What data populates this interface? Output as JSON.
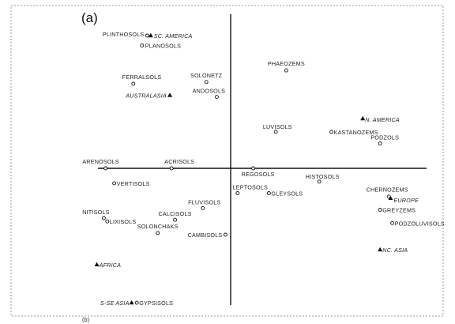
{
  "panel_label": "(a)",
  "bottom_label": "(b)",
  "chart_data": {
    "type": "scatter",
    "title": "",
    "xlabel": "",
    "ylabel": "",
    "xlim": [
      -4.0,
      7.0
    ],
    "ylim": [
      -4.5,
      4.5
    ],
    "grid": false,
    "axes_style": "crossed-at-origin, no ticks",
    "legend": "none",
    "marker_legend": {
      "circle": "soil group",
      "triangle": "region"
    },
    "points": [
      {
        "label": "PLINTHOSOLS",
        "x": -2.4,
        "y": 4.0,
        "marker": "circle"
      },
      {
        "label": "SC. AMERICA",
        "x": -2.3,
        "y": 4.0,
        "marker": "triangle"
      },
      {
        "label": "PLANOSOLS",
        "x": -2.55,
        "y": 3.7,
        "marker": "circle"
      },
      {
        "label": "PHAEOZEMS",
        "x": 1.6,
        "y": 2.95,
        "marker": "circle"
      },
      {
        "label": "FERRALSOLS",
        "x": -2.8,
        "y": 2.55,
        "marker": "circle"
      },
      {
        "label": "SOLONETZ",
        "x": -0.7,
        "y": 2.6,
        "marker": "circle"
      },
      {
        "label": "ANDOSOLS",
        "x": -0.4,
        "y": 2.15,
        "marker": "circle"
      },
      {
        "label": "AUSTRALASIA",
        "x": -1.75,
        "y": 2.2,
        "marker": "triangle"
      },
      {
        "label": "N. AMERICA",
        "x": 3.8,
        "y": 1.5,
        "marker": "triangle"
      },
      {
        "label": "LUVISOLS",
        "x": 1.3,
        "y": 1.1,
        "marker": "circle"
      },
      {
        "label": "KASTANOZEMS",
        "x": 2.9,
        "y": 1.1,
        "marker": "circle"
      },
      {
        "label": "PODZOLS",
        "x": 4.3,
        "y": 0.75,
        "marker": "circle"
      },
      {
        "label": "ARENOSOLS",
        "x": -3.6,
        "y": 0.0,
        "marker": "circle"
      },
      {
        "label": "ACRISOLS",
        "x": -1.7,
        "y": 0.0,
        "marker": "circle"
      },
      {
        "label": "REGOSOLS",
        "x": 0.65,
        "y": 0.0,
        "marker": "circle"
      },
      {
        "label": "HISTOSOLS",
        "x": 2.55,
        "y": -0.4,
        "marker": "circle"
      },
      {
        "label": "VERTISOLS",
        "x": -3.35,
        "y": -0.45,
        "marker": "circle"
      },
      {
        "label": "LEPTOSOLS",
        "x": 0.2,
        "y": -0.75,
        "marker": "circle"
      },
      {
        "label": "GLEYSOLS",
        "x": 1.1,
        "y": -0.75,
        "marker": "circle"
      },
      {
        "label": "CHERNOZEMS",
        "x": 4.55,
        "y": -0.85,
        "marker": "circle"
      },
      {
        "label": "EUROPE",
        "x": 4.6,
        "y": -0.9,
        "marker": "triangle"
      },
      {
        "label": "FLUVISOLS",
        "x": -0.8,
        "y": -1.2,
        "marker": "circle"
      },
      {
        "label": "GREYZEMS",
        "x": 4.3,
        "y": -1.25,
        "marker": "circle"
      },
      {
        "label": "NITISOLS",
        "x": -3.65,
        "y": -1.5,
        "marker": "circle"
      },
      {
        "label": "LIXISOLS",
        "x": -3.55,
        "y": -1.6,
        "marker": "circle"
      },
      {
        "label": "CALCISOLS",
        "x": -1.6,
        "y": -1.55,
        "marker": "circle"
      },
      {
        "label": "PODZOLUVISOLS",
        "x": 4.65,
        "y": -1.65,
        "marker": "circle"
      },
      {
        "label": "SOLONCHAKS",
        "x": -2.1,
        "y": -1.95,
        "marker": "circle"
      },
      {
        "label": "CAMBISOLS",
        "x": -0.15,
        "y": -2.0,
        "marker": "circle"
      },
      {
        "label": "NC. ASIA",
        "x": 4.3,
        "y": -2.45,
        "marker": "triangle"
      },
      {
        "label": "AFRICA",
        "x": -3.85,
        "y": -2.9,
        "marker": "triangle"
      },
      {
        "label": "S-SE ASIA",
        "x": -2.85,
        "y": -4.05,
        "marker": "triangle"
      },
      {
        "label": "GYPSISOLS",
        "x": -2.7,
        "y": -4.05,
        "marker": "circle"
      }
    ]
  }
}
